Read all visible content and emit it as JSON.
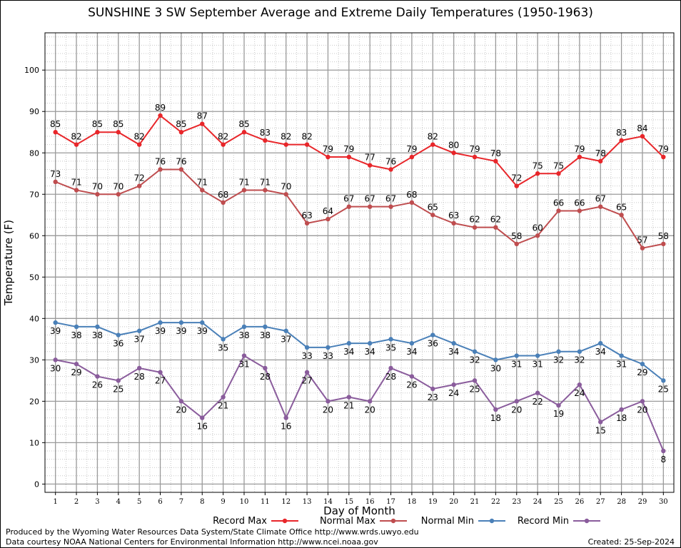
{
  "chart_data": {
    "type": "line",
    "title": "SUNSHINE 3 SW September Average and Extreme Daily Temperatures (1950-1963)",
    "xlabel": "Day of Month",
    "ylabel": "Temperature (F)",
    "x": [
      1,
      2,
      3,
      4,
      5,
      6,
      7,
      8,
      9,
      10,
      11,
      12,
      13,
      14,
      15,
      16,
      17,
      18,
      19,
      20,
      21,
      22,
      23,
      24,
      25,
      26,
      27,
      28,
      29,
      30
    ],
    "xlim": [
      0.5,
      30.5
    ],
    "ylim": [
      -2,
      109
    ],
    "yticks": [
      0,
      10,
      20,
      30,
      40,
      50,
      60,
      70,
      80,
      90,
      100
    ],
    "grid": true,
    "legend_position": "bottom",
    "series": [
      {
        "name": "Record Max",
        "color": "#e8262a",
        "label_pos": "above",
        "values": [
          85,
          82,
          85,
          85,
          82,
          89,
          85,
          87,
          82,
          85,
          83,
          82,
          82,
          79,
          79,
          77,
          76,
          79,
          82,
          80,
          79,
          78,
          72,
          75,
          75,
          79,
          78,
          83,
          84,
          79
        ]
      },
      {
        "name": "Normal Max",
        "color": "#bf4d4f",
        "label_pos": "above",
        "values": [
          73,
          71,
          70,
          70,
          72,
          76,
          76,
          71,
          68,
          71,
          71,
          70,
          63,
          64,
          67,
          67,
          67,
          68,
          65,
          63,
          62,
          62,
          58,
          60,
          66,
          66,
          67,
          65,
          57,
          58
        ]
      },
      {
        "name": "Normal Min",
        "color": "#4a80b8",
        "label_pos": "below",
        "values": [
          39,
          38,
          38,
          36,
          37,
          39,
          39,
          39,
          35,
          38,
          38,
          37,
          33,
          33,
          34,
          34,
          35,
          34,
          36,
          34,
          32,
          30,
          31,
          31,
          32,
          32,
          34,
          31,
          29,
          25
        ]
      },
      {
        "name": "Record Min",
        "color": "#8a5c9c",
        "label_pos": "below",
        "values": [
          30,
          29,
          26,
          25,
          28,
          27,
          20,
          16,
          21,
          31,
          28,
          16,
          27,
          20,
          21,
          20,
          28,
          26,
          23,
          24,
          25,
          18,
          20,
          22,
          19,
          24,
          15,
          18,
          20,
          8
        ]
      }
    ]
  },
  "footer": {
    "credit_line_1": "Produced by the Wyoming Water Resources Data System/State Climate Office http://www.wrds.uwyo.edu",
    "credit_line_2": "Data courtesy NOAA National Centers for Environmental Information http://www.ncei.noaa.gov",
    "created": "Created:  25-Sep-2024"
  }
}
